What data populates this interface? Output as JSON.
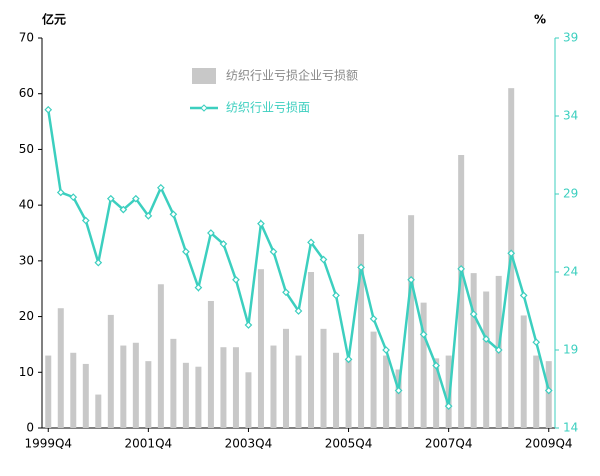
{
  "chart_data": {
    "type": "combo",
    "y_unit_label": "亿元",
    "y2_unit_label": "%",
    "categories": [
      "1999Q4",
      null,
      null,
      null,
      null,
      null,
      null,
      null,
      "2001Q4",
      null,
      null,
      null,
      null,
      null,
      null,
      null,
      "2003Q4",
      null,
      null,
      null,
      null,
      null,
      null,
      null,
      "2005Q4",
      null,
      null,
      null,
      null,
      null,
      null,
      null,
      "2007Q4",
      null,
      null,
      null,
      null,
      null,
      null,
      null,
      "2009Q4"
    ],
    "series": [
      {
        "name": "纺织行业亏损企业亏损额",
        "type": "bar",
        "color": "#c8c8c8",
        "values": [
          13,
          21.5,
          13.5,
          11.5,
          6,
          20.3,
          14.8,
          15.3,
          12,
          25.8,
          16,
          11.7,
          11,
          22.8,
          14.5,
          14.5,
          10,
          28.5,
          14.8,
          17.8,
          13,
          28,
          17.8,
          13.5,
          12.5,
          34.8,
          17.3,
          13,
          10.5,
          38.2,
          22.5,
          12.5,
          13,
          49,
          27.8,
          24.5,
          27.3,
          61,
          20.2,
          13,
          12
        ]
      },
      {
        "name": "纺织行业亏损面",
        "type": "line",
        "axis": "y2",
        "color": "#3ccfbf",
        "values": [
          34.4,
          29.1,
          28.8,
          27.3,
          24.6,
          28.7,
          28,
          28.7,
          27.6,
          29.4,
          27.7,
          25.3,
          23,
          26.5,
          25.8,
          23.5,
          20.6,
          27.1,
          25.3,
          22.7,
          21.5,
          25.9,
          24.8,
          22.5,
          18.4,
          24.3,
          21,
          19,
          16.4,
          23.5,
          20,
          18,
          15.4,
          24.2,
          21.3,
          19.7,
          19,
          25.2,
          22.5,
          19.5,
          16.4
        ]
      }
    ],
    "ylim": [
      0,
      70
    ],
    "yticks": [
      0,
      10,
      20,
      30,
      40,
      50,
      60,
      70
    ],
    "y2lim": [
      14,
      39
    ],
    "y2ticks": [
      14,
      19,
      24,
      29,
      34,
      39
    ],
    "grid": false
  }
}
